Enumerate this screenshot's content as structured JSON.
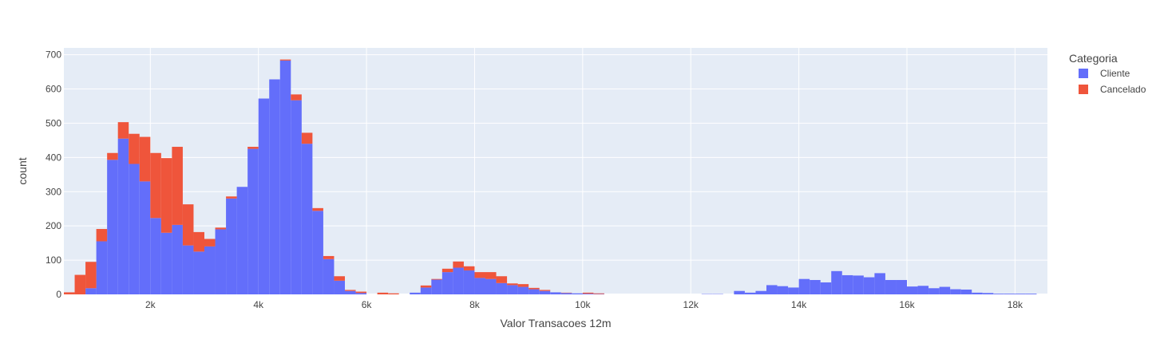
{
  "chart_data": {
    "type": "bar",
    "barmode": "stack",
    "xlabel": "Valor Transacoes 12m",
    "ylabel": "count",
    "xlim": [
      400,
      18600
    ],
    "ylim": [
      0,
      720
    ],
    "x_ticks": [
      2000,
      4000,
      6000,
      8000,
      10000,
      12000,
      14000,
      16000,
      18000
    ],
    "x_tick_labels": [
      "2k",
      "4k",
      "6k",
      "8k",
      "10k",
      "12k",
      "14k",
      "16k",
      "18k"
    ],
    "y_ticks": [
      0,
      100,
      200,
      300,
      400,
      500,
      600,
      700
    ],
    "bin_size": 200,
    "bin_start": 400,
    "legend": {
      "title": "Categoria",
      "position": "top-right"
    },
    "grid": true,
    "background": "#E5ECF6",
    "series": [
      {
        "name": "Cliente",
        "color": "#636EFA",
        "values": [
          0,
          0,
          18,
          155,
          393,
          455,
          381,
          330,
          223,
          180,
          203,
          143,
          125,
          140,
          190,
          280,
          314,
          425,
          572,
          628,
          683,
          567,
          440,
          244,
          103,
          40,
          10,
          4,
          0,
          0,
          0,
          0,
          5,
          20,
          43,
          65,
          78,
          70,
          48,
          45,
          33,
          27,
          22,
          15,
          10,
          6,
          4,
          3,
          2,
          1,
          0,
          0,
          0,
          0,
          0,
          0,
          0,
          0,
          0,
          1,
          1,
          0,
          10,
          5,
          10,
          27,
          24,
          20,
          45,
          42,
          35,
          68,
          56,
          55,
          50,
          62,
          42,
          42,
          23,
          25,
          18,
          22,
          15,
          14,
          5,
          4,
          2,
          2,
          2,
          2,
          0,
          0
        ]
      },
      {
        "name": "Cancelado",
        "color": "#EF553B",
        "values": [
          6,
          57,
          77,
          36,
          20,
          48,
          88,
          130,
          190,
          218,
          228,
          120,
          57,
          22,
          5,
          6,
          0,
          6,
          0,
          0,
          3,
          17,
          32,
          8,
          9,
          13,
          3,
          4,
          0,
          5,
          3,
          0,
          0,
          6,
          2,
          10,
          18,
          12,
          17,
          20,
          20,
          5,
          8,
          4,
          3,
          0,
          1,
          0,
          3,
          2,
          0,
          0,
          0,
          0,
          0,
          0,
          0,
          0,
          0,
          0,
          0,
          0,
          0,
          0,
          0,
          0,
          0,
          0,
          0,
          0,
          0,
          0,
          0,
          0,
          0,
          0,
          0,
          0,
          0,
          0,
          0,
          0,
          0,
          0,
          0,
          0,
          0,
          0,
          0,
          0,
          0,
          0
        ]
      }
    ]
  }
}
